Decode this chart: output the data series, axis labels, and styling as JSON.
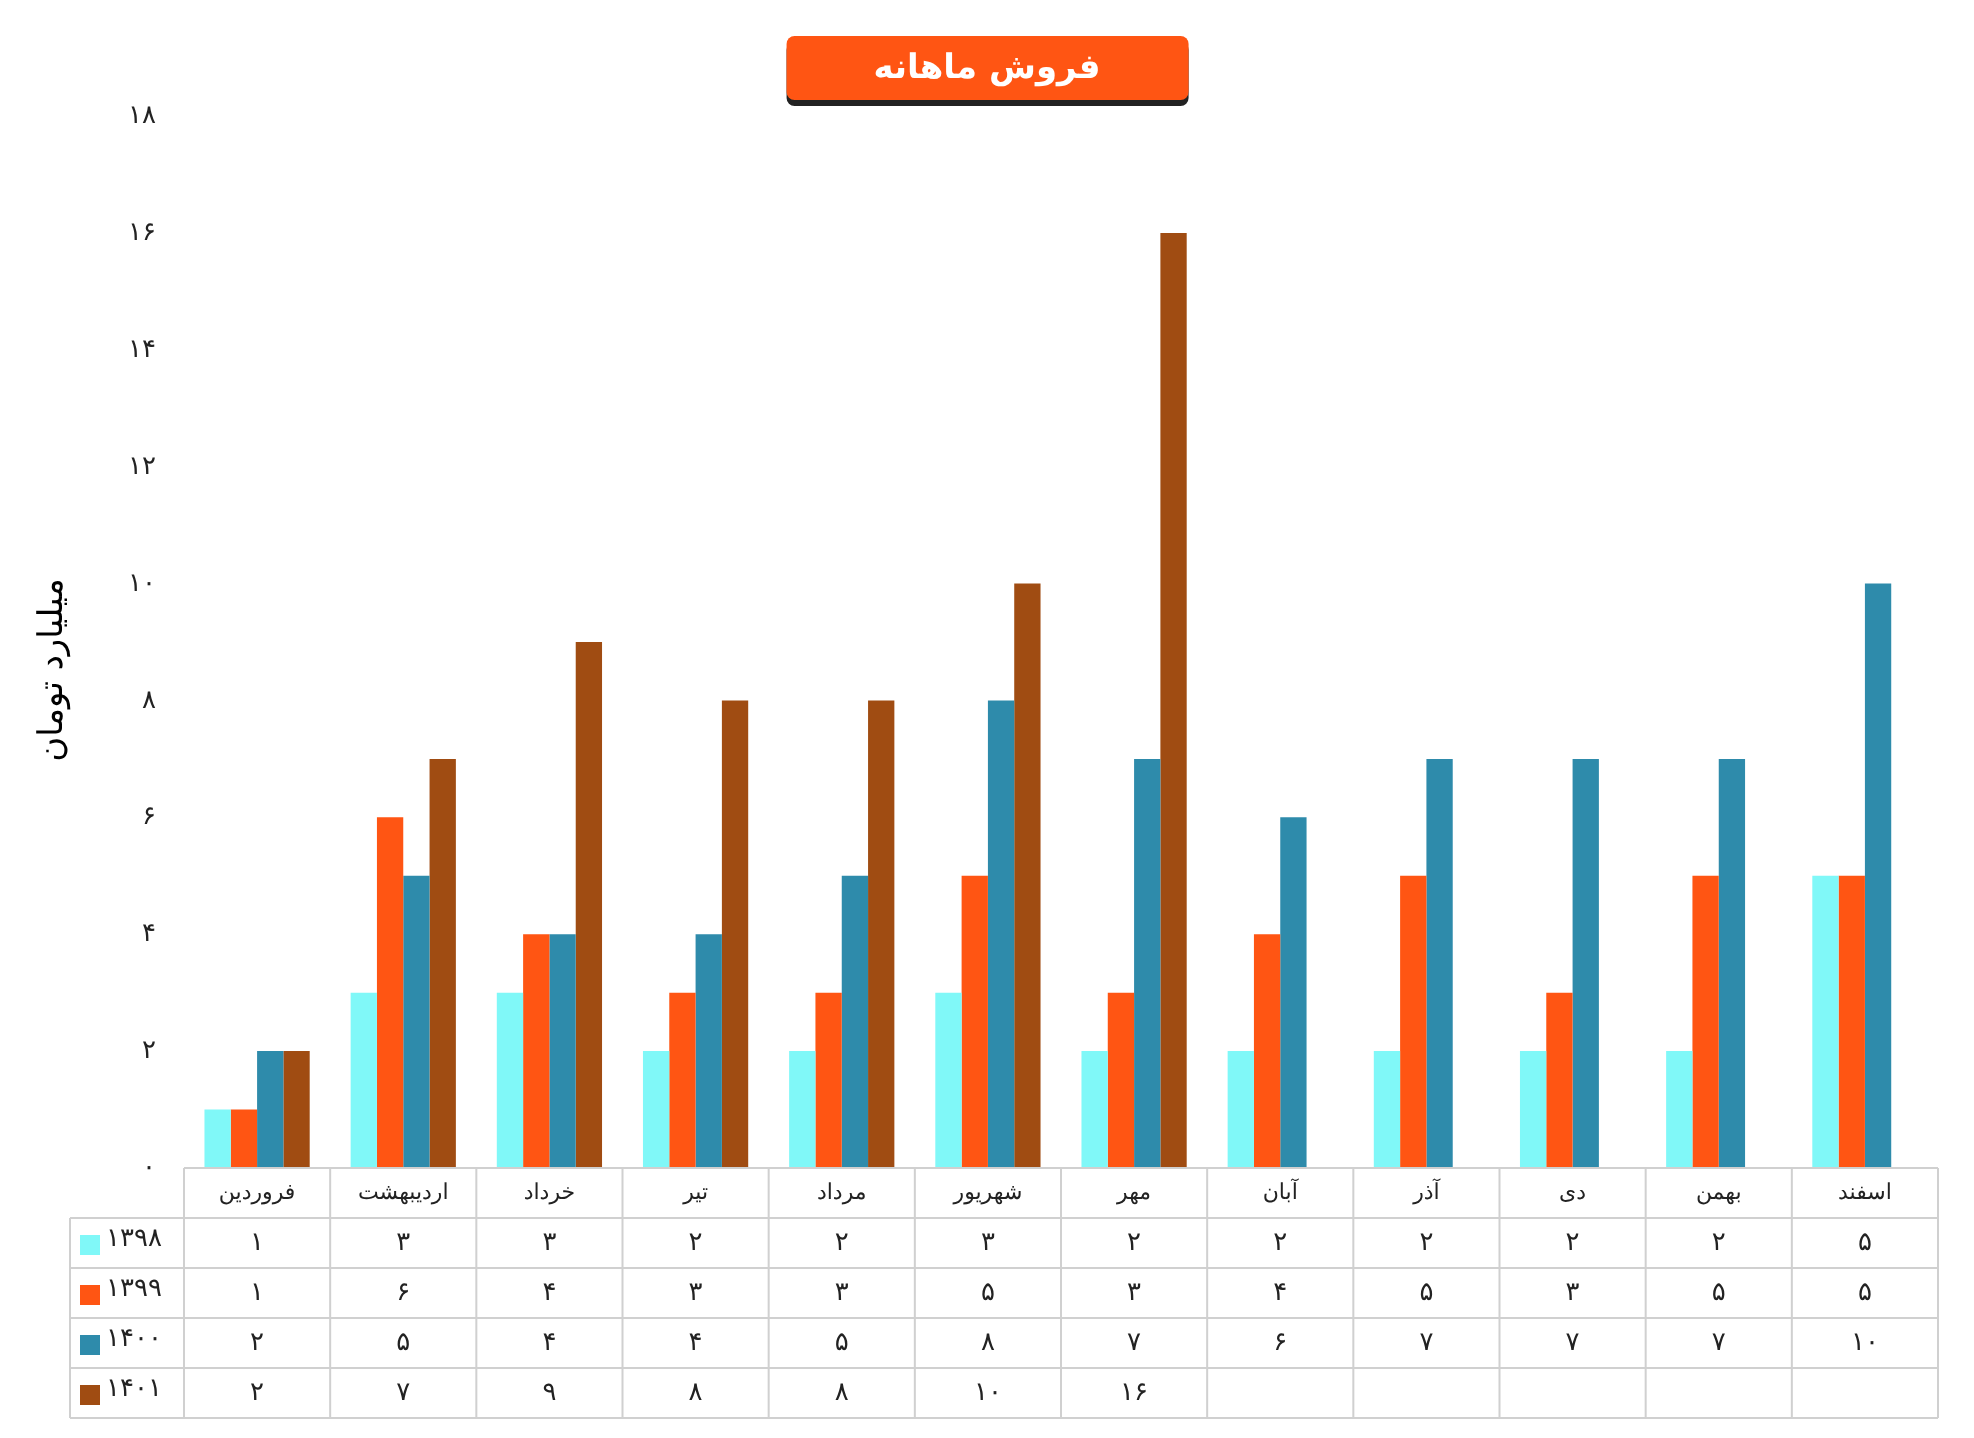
{
  "chart_data": {
    "type": "bar",
    "title": "فروش ماهانه",
    "ylabel": "میلیارد تومان",
    "categories": [
      "فروردین",
      "اردیبهشت",
      "خرداد",
      "تیر",
      "مرداد",
      "شهریور",
      "مهر",
      "آبان",
      "آذر",
      "دی",
      "بهمن",
      "اسفند"
    ],
    "series": [
      {
        "name": "۱۳۹۸",
        "color": "#80f8f8",
        "values": [
          1,
          3,
          3,
          2,
          2,
          3,
          2,
          2,
          2,
          2,
          2,
          5
        ],
        "value_labels": [
          "۱",
          "۳",
          "۳",
          "۲",
          "۲",
          "۳",
          "۲",
          "۲",
          "۲",
          "۲",
          "۲",
          "۵"
        ]
      },
      {
        "name": "۱۳۹۹",
        "color": "#ff5513",
        "values": [
          1,
          6,
          4,
          3,
          3,
          5,
          3,
          4,
          5,
          3,
          5,
          5
        ],
        "value_labels": [
          "۱",
          "۶",
          "۴",
          "۳",
          "۳",
          "۵",
          "۳",
          "۴",
          "۵",
          "۳",
          "۵",
          "۵"
        ]
      },
      {
        "name": "۱۴۰۰",
        "color": "#2e8bab",
        "values": [
          2,
          5,
          4,
          4,
          5,
          8,
          7,
          6,
          7,
          7,
          7,
          10
        ],
        "value_labels": [
          "۲",
          "۵",
          "۴",
          "۴",
          "۵",
          "۸",
          "۷",
          "۶",
          "۷",
          "۷",
          "۷",
          "۱۰"
        ]
      },
      {
        "name": "۱۴۰۱",
        "color": "#a04c12",
        "values": [
          2,
          7,
          9,
          8,
          8,
          10,
          16,
          null,
          null,
          null,
          null,
          null
        ],
        "value_labels": [
          "۲",
          "۷",
          "۹",
          "۸",
          "۸",
          "۱۰",
          "۱۶",
          null,
          null,
          null,
          null,
          null
        ]
      }
    ],
    "ylim": [
      0,
      18
    ],
    "yticks": [
      {
        "value": 0,
        "label": "۰"
      },
      {
        "value": 2,
        "label": "۲"
      },
      {
        "value": 4,
        "label": "۴"
      },
      {
        "value": 6,
        "label": "۶"
      },
      {
        "value": 8,
        "label": "۸"
      },
      {
        "value": 10,
        "label": "۱۰"
      },
      {
        "value": 12,
        "label": "۱۲"
      },
      {
        "value": 14,
        "label": "۱۴"
      },
      {
        "value": 16,
        "label": "۱۶"
      },
      {
        "value": 18,
        "label": "۱۸"
      }
    ],
    "grid": false,
    "legend": "bottom left"
  }
}
